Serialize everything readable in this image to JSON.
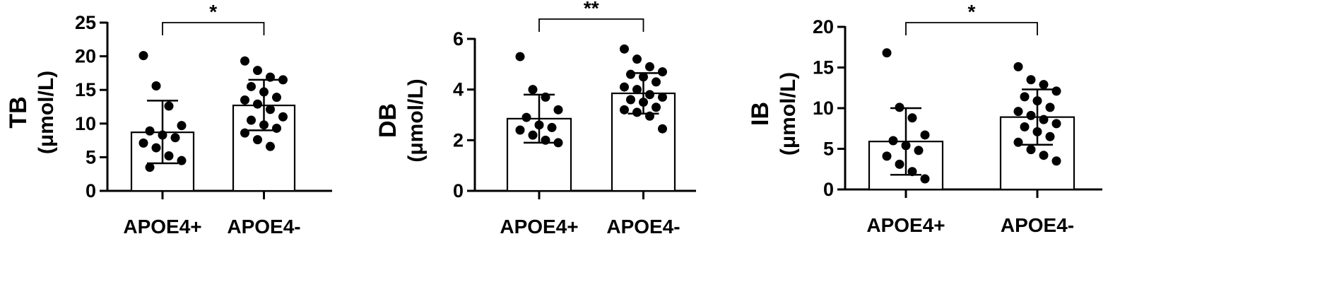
{
  "chart_data": [
    {
      "type": "bar",
      "ylabel": "TB",
      "yunit": "(μmol/L)",
      "categories": [
        "APOE4+",
        "APOE4-"
      ],
      "values": [
        8.7,
        12.7
      ],
      "error_low": [
        4.1,
        9.0
      ],
      "error_high": [
        13.4,
        16.5
      ],
      "points": [
        [
          20.1,
          15.6,
          12.6,
          9.7,
          8.9,
          8.3,
          7.9,
          7.1,
          6.4,
          5.2,
          4.5,
          3.5
        ],
        [
          19.3,
          17.9,
          16.9,
          16.5,
          15.5,
          14.7,
          13.9,
          13.5,
          12.9,
          12.1,
          11.0,
          10.5,
          9.8,
          9.3,
          8.6,
          7.6,
          6.6
        ]
      ],
      "ylim": [
        0,
        25
      ],
      "yticks": [
        "0",
        "5",
        "10",
        "15",
        "20",
        "25"
      ],
      "significance": "*"
    },
    {
      "type": "bar",
      "ylabel": "DB",
      "yunit": "(μmol/L)",
      "categories": [
        "APOE4+",
        "APOE4-"
      ],
      "values": [
        2.85,
        3.85
      ],
      "error_low": [
        1.9,
        3.05
      ],
      "error_high": [
        3.8,
        4.65
      ],
      "points": [
        [
          5.3,
          4.0,
          3.7,
          3.2,
          2.9,
          2.6,
          2.5,
          2.4,
          2.2,
          2.0,
          1.9
        ],
        [
          5.6,
          5.2,
          4.9,
          4.7,
          4.6,
          4.5,
          4.3,
          4.1,
          4.0,
          3.8,
          3.7,
          3.6,
          3.5,
          3.3,
          3.2,
          3.1,
          2.95,
          2.45
        ]
      ],
      "ylim": [
        0,
        6
      ],
      "yticks": [
        "0",
        "2",
        "4",
        "6"
      ],
      "significance": "**"
    },
    {
      "type": "bar",
      "ylabel": "IB",
      "yunit": "(μmol/L)",
      "categories": [
        "APOE4+",
        "APOE4-"
      ],
      "values": [
        5.9,
        8.9
      ],
      "error_low": [
        1.8,
        5.5
      ],
      "error_high": [
        10.0,
        12.3
      ],
      "points": [
        [
          16.8,
          10.1,
          8.8,
          6.7,
          6.0,
          5.4,
          4.8,
          4.1,
          3.1,
          2.2,
          1.3
        ],
        [
          15.1,
          13.5,
          12.9,
          12.1,
          11.4,
          10.9,
          10.1,
          9.6,
          9.1,
          8.6,
          8.1,
          7.7,
          7.1,
          6.5,
          5.8,
          4.9,
          4.2,
          3.5
        ]
      ],
      "ylim": [
        0,
        20
      ],
      "yticks": [
        "0",
        "5",
        "10",
        "15",
        "20"
      ],
      "significance": "*"
    }
  ]
}
